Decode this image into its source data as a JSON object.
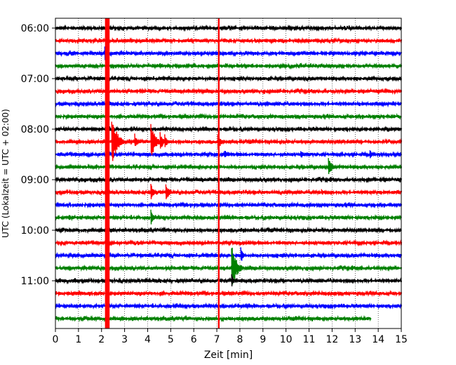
{
  "chart_data": {
    "type": "line",
    "subtype": "helicorder-seismogram",
    "xlabel": "Zeit  [min]",
    "ylabel": "UTC (Lokalzeit = UTC + 02:00)",
    "xlim": [
      0,
      15
    ],
    "x_ticks": [
      0,
      1,
      2,
      3,
      4,
      5,
      6,
      7,
      8,
      9,
      10,
      11,
      12,
      13,
      14,
      15
    ],
    "x_tick_labels": [
      "0",
      "1",
      "2",
      "3",
      "4",
      "5",
      "6",
      "7",
      "8",
      "9",
      "10",
      "11",
      "12",
      "13",
      "14",
      "15"
    ],
    "y_tick_labels": [
      "06:00",
      "07:00",
      "08:00",
      "09:00",
      "10:00",
      "11:00"
    ],
    "y_tick_rows": [
      0,
      4,
      8,
      12,
      16,
      20
    ],
    "row_interval_min": 15,
    "grid": "vertical dotted",
    "colors": [
      "#000000",
      "#ff0000",
      "#0000ff",
      "#008000"
    ],
    "rows": [
      {
        "start": "06:00",
        "color": "#000000"
      },
      {
        "start": "06:15",
        "color": "#ff0000"
      },
      {
        "start": "06:30",
        "color": "#0000ff"
      },
      {
        "start": "06:45",
        "color": "#008000"
      },
      {
        "start": "07:00",
        "color": "#000000"
      },
      {
        "start": "07:15",
        "color": "#ff0000"
      },
      {
        "start": "07:30",
        "color": "#0000ff"
      },
      {
        "start": "07:45",
        "color": "#008000"
      },
      {
        "start": "08:00",
        "color": "#000000"
      },
      {
        "start": "08:15",
        "color": "#ff0000"
      },
      {
        "start": "08:30",
        "color": "#0000ff"
      },
      {
        "start": "08:45",
        "color": "#008000"
      },
      {
        "start": "09:00",
        "color": "#000000"
      },
      {
        "start": "09:15",
        "color": "#ff0000"
      },
      {
        "start": "09:30",
        "color": "#0000ff"
      },
      {
        "start": "09:45",
        "color": "#008000"
      },
      {
        "start": "10:00",
        "color": "#000000"
      },
      {
        "start": "10:15",
        "color": "#ff0000"
      },
      {
        "start": "10:30",
        "color": "#0000ff"
      },
      {
        "start": "10:45",
        "color": "#008000"
      },
      {
        "start": "11:00",
        "color": "#000000"
      },
      {
        "start": "11:15",
        "color": "#ff0000"
      },
      {
        "start": "11:30",
        "color": "#0000ff"
      },
      {
        "start": "11:45",
        "color": "#008000",
        "end_min": 13.7
      }
    ],
    "vertical_spans": [
      {
        "x_min": 2.15,
        "x_max": 2.35,
        "color": "#ff0000"
      },
      {
        "x_min": 7.05,
        "x_max": 7.12,
        "color": "#ff0000"
      }
    ],
    "events": [
      {
        "row": 2,
        "x": 2.2,
        "amp": 1.2,
        "color": "#0000ff"
      },
      {
        "row": 9,
        "x": 2.5,
        "amp": 4.0,
        "color": "#ff0000"
      },
      {
        "row": 9,
        "x": 4.2,
        "amp": 3.0,
        "color": "#ff0000"
      },
      {
        "row": 9,
        "x": 3.5,
        "amp": 1.2,
        "color": "#ff0000"
      },
      {
        "row": 9,
        "x": 4.6,
        "amp": 1.5,
        "color": "#ff0000"
      },
      {
        "row": 9,
        "x": 4.8,
        "amp": 1.2,
        "color": "#ff0000"
      },
      {
        "row": 9,
        "x": 7.1,
        "amp": 1.5,
        "color": "#ff0000"
      },
      {
        "row": 10,
        "x": 7.4,
        "amp": 0.8,
        "color": "#0000ff"
      },
      {
        "row": 10,
        "x": 10.7,
        "amp": 0.9,
        "color": "#0000ff"
      },
      {
        "row": 10,
        "x": 13.7,
        "amp": 0.8,
        "color": "#0000ff"
      },
      {
        "row": 11,
        "x": 11.9,
        "amp": 1.8,
        "color": "#008000"
      },
      {
        "row": 13,
        "x": 4.2,
        "amp": 1.3,
        "color": "#ff0000"
      },
      {
        "row": 13,
        "x": 4.85,
        "amp": 1.6,
        "color": "#ff0000"
      },
      {
        "row": 13,
        "x": 11.6,
        "amp": 0.5,
        "color": "#ff0000"
      },
      {
        "row": 15,
        "x": 0.65,
        "amp": 0.6,
        "color": "#008000"
      },
      {
        "row": 15,
        "x": 4.2,
        "amp": 1.2,
        "color": "#008000"
      },
      {
        "row": 18,
        "x": 8.1,
        "amp": 1.2,
        "color": "#0000ff"
      },
      {
        "row": 19,
        "x": 7.7,
        "amp": 3.5,
        "color": "#008000"
      },
      {
        "row": 20,
        "x": 7.7,
        "amp": 1.0,
        "color": "#000000"
      }
    ]
  }
}
